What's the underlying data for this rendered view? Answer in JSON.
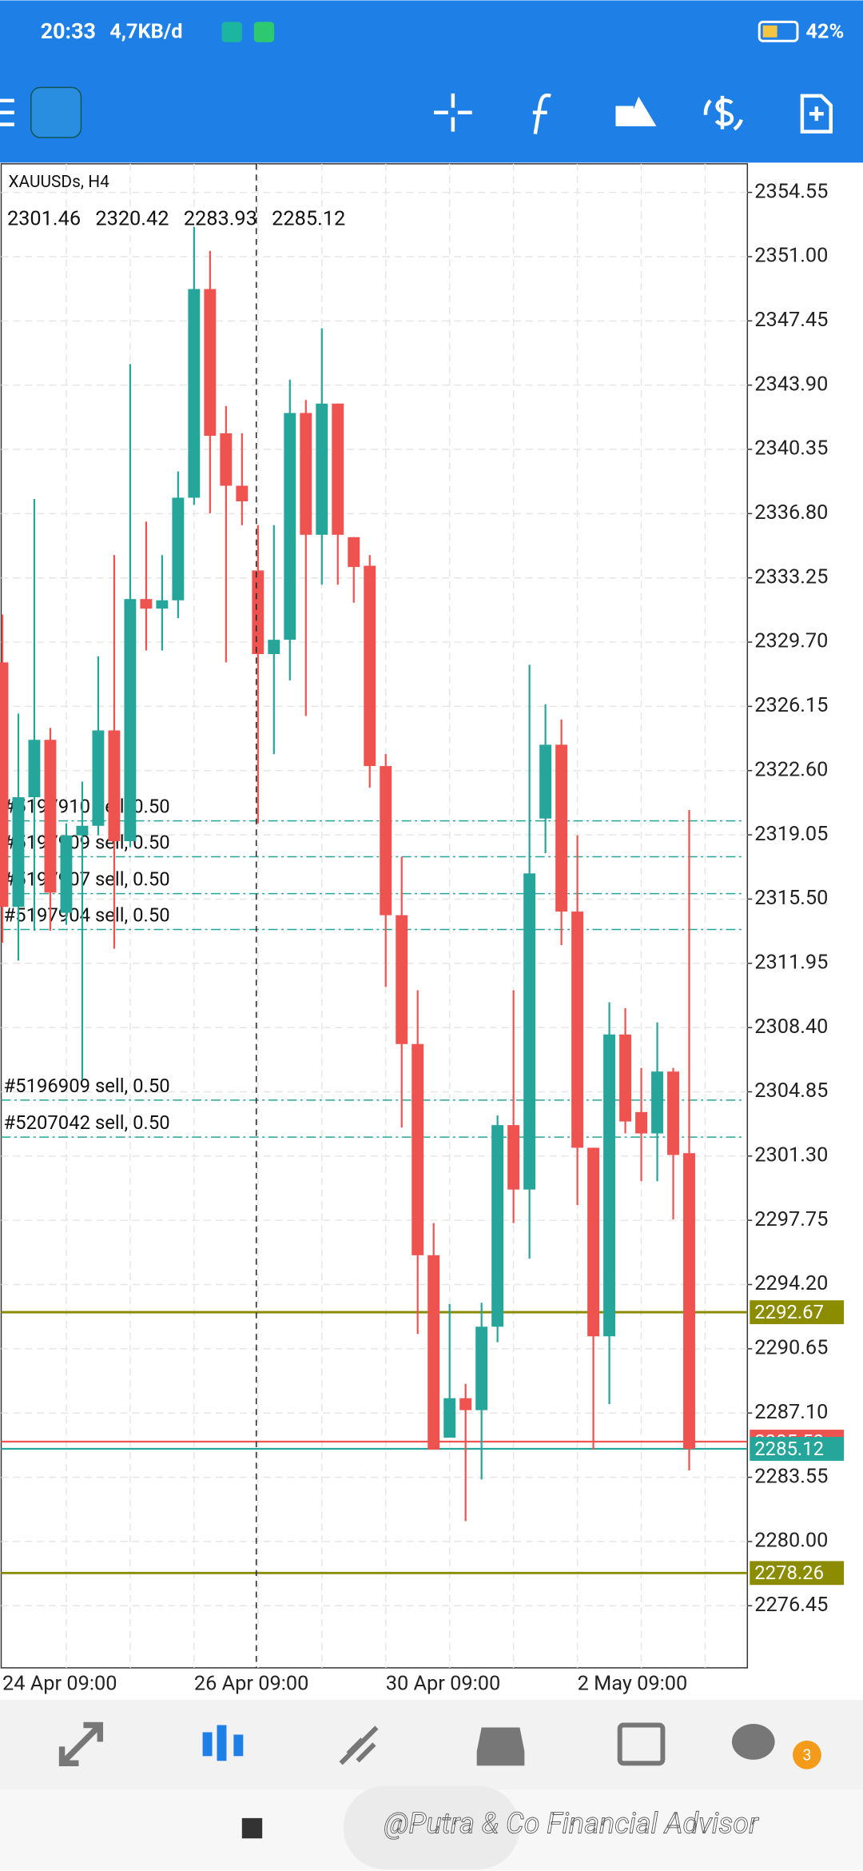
{
  "status_bar": {
    "time": "20:33",
    "speed": "4,7KB/d",
    "battery": "42%"
  },
  "chart_data": {
    "type": "candlestick",
    "symbol": "XAUUSDs, H4",
    "categories": [
      "24 Apr 09:00",
      null,
      null,
      null,
      null,
      null,
      null,
      null,
      null,
      null,
      null,
      null,
      "26 Apr 09:00",
      null,
      null,
      null,
      null,
      null,
      null,
      null,
      null,
      null,
      null,
      null,
      "30 Apr 09:00",
      null,
      null,
      null,
      null,
      null,
      null,
      null,
      null,
      null,
      null,
      null,
      "2 May 09:00",
      null,
      null,
      null,
      null,
      null,
      null,
      null
    ],
    "open": [
      2328.58,
      2315.07,
      2321.13,
      2324.3,
      2314.74,
      2319.02,
      2319.55,
      2324.82,
      2318.7,
      2332.08,
      2331.55,
      2332.01,
      2337.68,
      2349.21,
      2341.24,
      2338.34,
      2333.66,
      2329.04,
      2329.83,
      2342.36,
      2335.63,
      2342.88,
      2335.5,
      2333.92,
      2322.85,
      2314.61,
      2307.49,
      2295.82,
      2285.74,
      2287.92,
      2287.26,
      2291.87,
      2303.01,
      2299.45,
      2319.95,
      2324.03,
      2314.81,
      2301.76,
      2291.34,
      2308.02,
      2303.73,
      2302.55,
      2305.97,
      2301.46
    ],
    "high": [
      2331.22,
      2325.75,
      2337.61,
      2324.96,
      2319.68,
      2321.99,
      2328.91,
      2334.51,
      2345.06,
      2336.36,
      2334.51,
      2339.13,
      2352.64,
      2351.32,
      2342.75,
      2341.24,
      2336.16,
      2336.16,
      2344.2,
      2343.08,
      2347.04,
      2342.88,
      2335.5,
      2334.51,
      2323.51,
      2317.84,
      2310.46,
      2297.6,
      2293.12,
      2288.71,
      2293.19,
      2303.54,
      2310.46,
      2328.45,
      2326.27,
      2325.42,
      2319.02,
      2301.76,
      2309.8,
      2309.47,
      2306.17,
      2308.68,
      2306.17,
      2320.42
    ],
    "low": [
      2313.09,
      2312.1,
      2313.75,
      2313.75,
      2314.08,
      2305.51,
      2319.02,
      2312.76,
      2318.37,
      2329.24,
      2329.24,
      2331.02,
      2337.28,
      2336.82,
      2328.58,
      2336.16,
      2319.68,
      2323.51,
      2327.59,
      2325.62,
      2332.87,
      2332.87,
      2331.88,
      2321.66,
      2310.65,
      2302.88,
      2291.47,
      2285.08,
      2285.74,
      2281.13,
      2283.43,
      2291.01,
      2297.6,
      2295.63,
      2318.04,
      2312.96,
      2298.59,
      2285.08,
      2287.59,
      2302.55,
      2299.91,
      2299.91,
      2297.8,
      2283.93
    ],
    "close": [
      2315.07,
      2321.13,
      2324.3,
      2315.86,
      2319.02,
      2319.55,
      2324.82,
      2318.7,
      2332.08,
      2331.55,
      2332.01,
      2337.68,
      2349.21,
      2341.1,
      2338.34,
      2337.48,
      2329.04,
      2329.83,
      2342.36,
      2335.63,
      2342.88,
      2335.63,
      2333.85,
      2322.85,
      2314.61,
      2307.49,
      2295.82,
      2285.08,
      2287.92,
      2287.26,
      2291.87,
      2303.01,
      2299.45,
      2316.92,
      2324.03,
      2314.81,
      2301.76,
      2291.34,
      2308.02,
      2303.21,
      2302.55,
      2305.97,
      2301.36,
      2285.12
    ],
    "up_color": "#26a69a",
    "down_color": "#ef5350",
    "ylim": [
      2273.02,
      2356.13
    ],
    "yticks": [
      2354.55,
      {
        "value": 2351.0,
        "label": "2351.00"
      },
      2347.45,
      {
        "value": 2343.9,
        "label": "2343.90"
      },
      2340.35,
      {
        "value": 2336.8,
        "label": "2336.80"
      },
      2333.25,
      {
        "value": 2329.7,
        "label": "2329.70"
      },
      2326.15,
      {
        "value": 2322.6,
        "label": "2322.60"
      },
      2319.05,
      {
        "value": 2315.5,
        "label": "2315.50"
      },
      2311.95,
      {
        "value": 2308.4,
        "label": "2308.40"
      },
      2304.85,
      {
        "value": 2301.3,
        "label": "2301.30"
      },
      2297.75,
      {
        "value": 2294.2,
        "label": "2294.20"
      },
      2290.65,
      {
        "value": 2287.1,
        "label": "2287.10"
      },
      2283.55,
      {
        "value": 2280.0,
        "label": "2280.00"
      },
      2276.45
    ],
    "grid": true,
    "order_lines": [
      {
        "label": "#5197910 sell, 0.50",
        "value": 2319.82
      },
      {
        "label": "#5197909 sell, 0.50",
        "value": 2317.84
      },
      {
        "label": "#5197907 sell, 0.50",
        "value": 2315.8
      },
      {
        "label": "#5197904 sell, 0.50",
        "value": 2313.82
      },
      {
        "label": "#5196909 sell, 0.50",
        "value": 2304.39
      },
      {
        "label": "#5207042 sell, 0.50",
        "value": 2302.35
      }
    ],
    "order_color": "#26a69a",
    "level_lines": [
      {
        "value": 2292.67,
        "color": "#8c8c00"
      },
      {
        "value": 2278.26,
        "color": "#8c8c00"
      }
    ],
    "ask": {
      "value": 2285.52,
      "color": "#ef5350"
    },
    "bid": {
      "value": 2285.12,
      "color": "#26a69a"
    }
  },
  "badge": "3",
  "watermark": "@Putra & Co Financial Advisor"
}
